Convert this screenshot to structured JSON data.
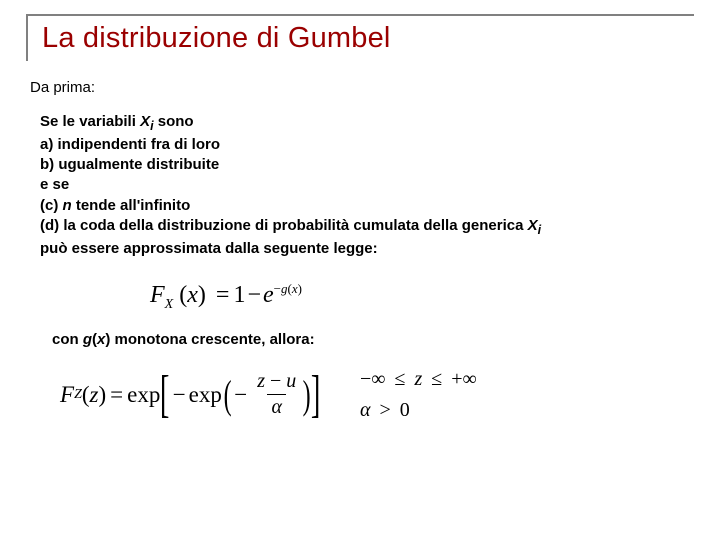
{
  "title": "La distribuzione di Gumbel",
  "lead": "Da prima:",
  "cond": {
    "l1a": "Se le variabili ",
    "l1b": "X",
    "l1c": "i",
    "l1d": " sono",
    "a": "a)  indipendenti fra di loro",
    "b": "b)  ugualmente distribuite",
    "ese": "e se",
    "c1": "(c) ",
    "c2": "n",
    "c3": " tende all'infinito",
    "d1": "(d) la coda della distribuzione di probabilità cumulata della generica ",
    "d2": "X",
    "d3": "i",
    "last": "può essere approssimata dalla seguente legge:"
  },
  "eq1": {
    "lhs1": "F",
    "lhs2": "X",
    "lp": "(",
    "x": "x",
    "rp": ")",
    "eq": "=",
    "one": "1",
    "minus": "−",
    "e": "e",
    "sup1": "−",
    "sup2": "g",
    "sup3": "(",
    "sup4": "x",
    "sup5": ")"
  },
  "then": {
    "a": "con ",
    "g": "g",
    "lp": "(",
    "x": "x",
    "rp": ")",
    "b": " monotona crescente, allora:"
  },
  "eq2": {
    "F": "F",
    "Z": "Z",
    "lp": "(",
    "z": "z",
    "rp": ")",
    "eq": "=",
    "exp": "exp",
    "lb": "[",
    "m1": "−",
    "exp2": "exp",
    "lp2": "(",
    "m2": "−",
    "num1": "z",
    "num_m": "−",
    "num2": "u",
    "den": "α",
    "rp2": ")",
    "rb": "]"
  },
  "constraints": {
    "neg_inf": "−∞",
    "le1": "≤",
    "z": "z",
    "le2": "≤",
    "pos_inf": "+∞",
    "alpha": "α",
    "gt": ">",
    "zero": "0"
  },
  "colors": {
    "title": "#9a0000",
    "rule": "#808080",
    "text": "#000000",
    "bg": "#ffffff"
  },
  "fonts": {
    "body": "Arial",
    "math": "Times New Roman",
    "title_size": 29,
    "body_size": 15,
    "eq_size": 24
  }
}
